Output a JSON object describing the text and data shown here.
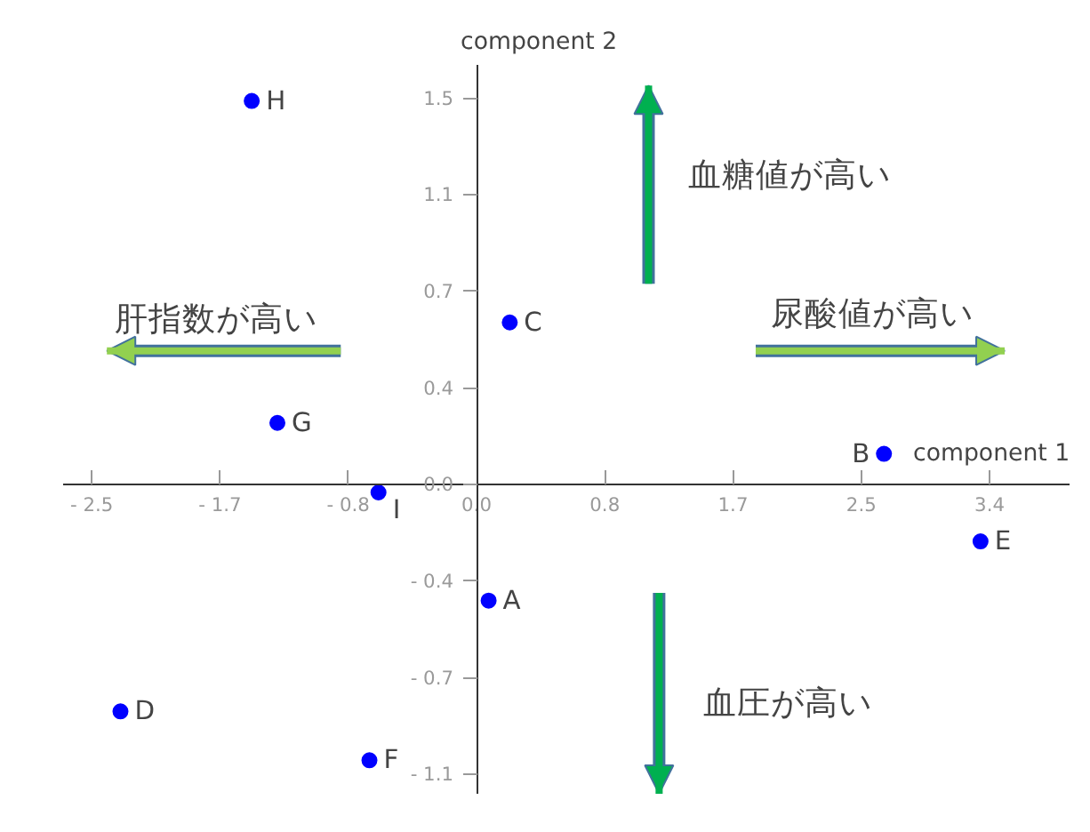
{
  "chart_data": {
    "type": "scatter",
    "xlabel": "component 1",
    "ylabel": "component 2",
    "x": [
      0.08,
      2.7,
      0.22,
      -2.36,
      3.34,
      -0.71,
      -1.32,
      -1.49,
      -0.65
    ],
    "series": [
      {
        "color": "#0000ff",
        "values": [
          -0.45,
          0.12,
          0.63,
          -0.88,
          -0.22,
          -1.07,
          0.24,
          1.49,
          -0.03
        ]
      }
    ],
    "marker": "circle",
    "grid": false,
    "xlim": [
      -2.74,
      3.93
    ],
    "ylim": [
      -1.2,
      1.63
    ],
    "xticks": [
      {
        "value": -2.55,
        "label": "- 2.5"
      },
      {
        "value": -1.7,
        "label": "- 1.7"
      },
      {
        "value": -0.85,
        "label": "- 0.8"
      },
      {
        "value": 0,
        "label": "0.0"
      },
      {
        "value": 0.85,
        "label": "0.8"
      },
      {
        "value": 1.7,
        "label": "1.7"
      },
      {
        "value": 2.55,
        "label": "2.5"
      },
      {
        "value": 3.4,
        "label": "3.4"
      }
    ],
    "yticks": [
      {
        "value": -1.125,
        "label": "- 1.1"
      },
      {
        "value": -0.75,
        "label": "- 0.7"
      },
      {
        "value": -0.375,
        "label": "- 0.4"
      },
      {
        "value": 0,
        "label": "0.0"
      },
      {
        "value": 0.375,
        "label": "0.4"
      },
      {
        "value": 0.75,
        "label": "0.7"
      },
      {
        "value": 1.125,
        "label": "1.1"
      },
      {
        "value": 1.5,
        "label": "1.5"
      }
    ],
    "annotations": [
      {
        "text": "A",
        "x": 0.08,
        "y": -0.45
      },
      {
        "text": "B",
        "x": 2.7,
        "y": 0.12
      },
      {
        "text": "C",
        "x": 0.22,
        "y": 0.63
      },
      {
        "text": "D",
        "x": -2.36,
        "y": -0.88
      },
      {
        "text": "E",
        "x": 3.34,
        "y": -0.22
      },
      {
        "text": "F",
        "x": -0.71,
        "y": -1.07
      },
      {
        "text": "G",
        "x": -1.32,
        "y": 0.24
      },
      {
        "text": "H",
        "x": -1.49,
        "y": 1.49
      },
      {
        "text": "I",
        "x": -0.65,
        "y": -0.03
      },
      "血糖値が高い",
      "肝指数が高い",
      "尿酸値が高い",
      "血圧が高い"
    ]
  }
}
